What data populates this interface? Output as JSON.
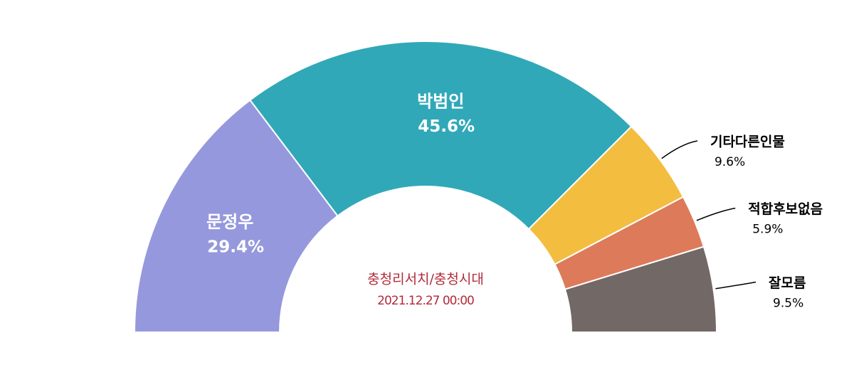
{
  "chart_data": {
    "type": "half-donut",
    "categories": [
      "문정우",
      "박범인",
      "기타다른인물",
      "적합후보없음",
      "잘모름"
    ],
    "values": [
      29.4,
      45.6,
      9.6,
      5.9,
      9.5
    ],
    "value_labels": [
      "29.4%",
      "45.6%",
      "9.6%",
      "5.9%",
      "9.5%"
    ],
    "colors": [
      "#9698dd",
      "#31a8b8",
      "#f3bd40",
      "#dd7a5a",
      "#726866"
    ],
    "center_text": [
      "충청리서치/충청시대",
      "2021.12.27 00:00"
    ]
  }
}
